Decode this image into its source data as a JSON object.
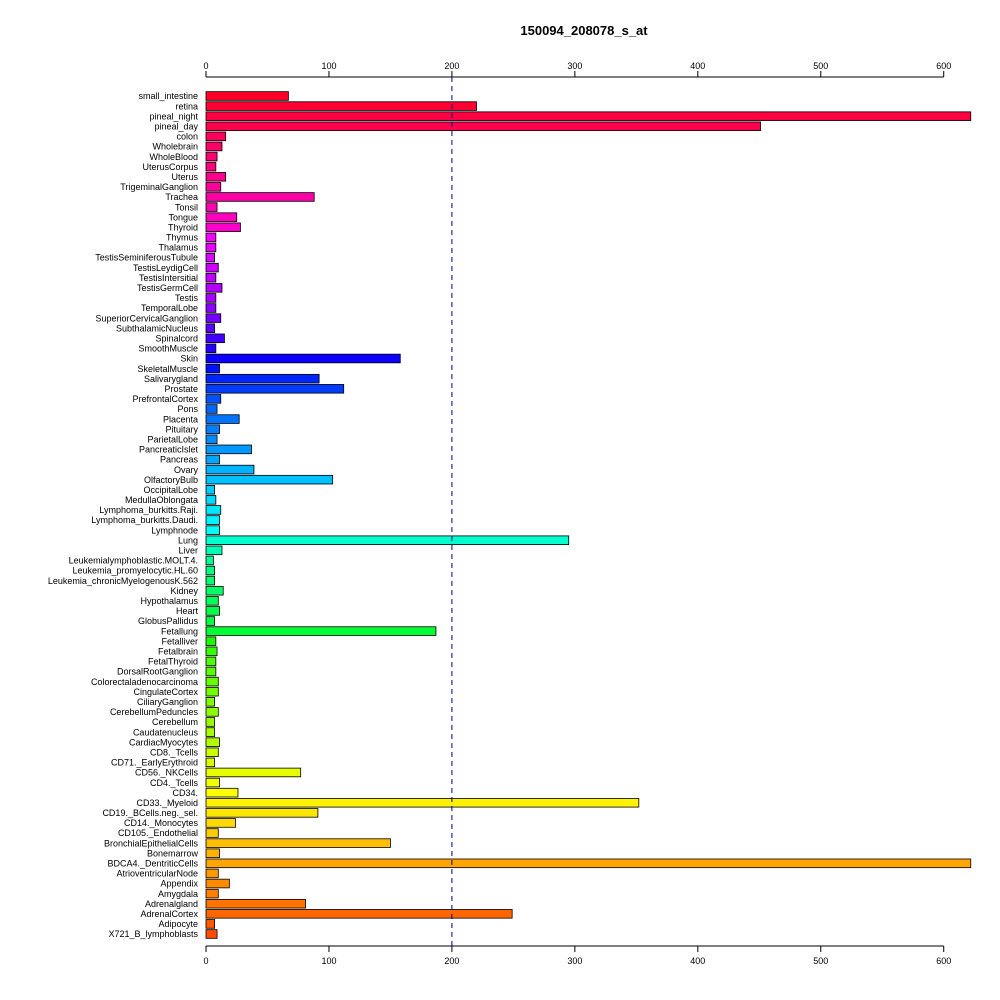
{
  "chart_data": {
    "type": "bar",
    "orientation": "horizontal",
    "title": "150094_208078_s_at",
    "xlim": [
      0,
      623
    ],
    "x_ticks": [
      0,
      100,
      200,
      300,
      400,
      500,
      600
    ],
    "x_tick_labels": [
      "0",
      "100",
      "200",
      "300",
      "400",
      "500",
      "600"
    ],
    "axis_position": "top and bottom",
    "reference_line": 200,
    "reference_line_color": "#00008b",
    "categories": [
      "small_intestine",
      "retina",
      "pineal_night",
      "pineal_day",
      "colon",
      "Wholebrain",
      "WholeBlood",
      "UterusCorpus",
      "Uterus",
      "TrigeminalGanglion",
      "Trachea",
      "Tonsil",
      "Tongue",
      "Thyroid",
      "Thymus",
      "Thalamus",
      "TestisSeminiferousTubule",
      "TestisLeydigCell",
      "TestisIntersitial",
      "TestisGermCell",
      "Testis",
      "TemporalLobe",
      "SuperiorCervicalGanglion",
      "SubthalamicNucleus",
      "Spinalcord",
      "SmoothMuscle",
      "Skin",
      "SkeletalMuscle",
      "Salivarygland",
      "Prostate",
      "PrefrontalCortex",
      "Pons",
      "Placenta",
      "Pituitary",
      "ParietalLobe",
      "PancreaticIslet",
      "Pancreas",
      "Ovary",
      "OlfactoryBulb",
      "OccipitalLobe",
      "MedullaOblongata",
      "Lymphoma_burkitts.Raji.",
      "Lymphoma_burkitts.Daudi.",
      "Lymphnode",
      "Lung",
      "Liver",
      "Leukemialymphoblastic.MOLT.4.",
      "Leukemia_promyelocytic.HL.60",
      "Leukemia_chronicMyelogenousK.562",
      "Kidney",
      "Hypothalamus",
      "Heart",
      "GlobusPallidus",
      "Fetallung",
      "Fetalliver",
      "Fetalbrain",
      "FetalThyroid",
      "DorsalRootGanglion",
      "Colorectaladenocarcinoma",
      "CingulateCortex",
      "CiliaryGanglion",
      "CerebellumPeduncles",
      "Cerebellum",
      "Caudatenucleus",
      "CardiacMyocytes",
      "CD8._Tcells",
      "CD71._EarlyErythroid",
      "CD56._NKCells",
      "CD4._Tcells",
      "CD34.",
      "CD33._Myeloid",
      "CD19._BCells.neg._sel.",
      "CD14._Monocytes",
      "CD105._Endothelial",
      "BronchialEpithelialCells",
      "Bonemarrow",
      "BDCA4._DentriticCells",
      "AtrioventricularNode",
      "Appendix",
      "Amygdala",
      "Adrenalgland",
      "AdrenalCortex",
      "Adipocyte",
      "X721_B_lymphoblasts"
    ],
    "values": [
      67,
      220,
      622,
      451,
      16,
      13,
      9,
      8,
      16,
      12,
      88,
      9,
      25,
      28,
      8,
      8,
      7,
      10,
      8,
      13,
      8,
      8,
      12,
      7,
      15,
      8,
      158,
      11,
      92,
      112,
      12,
      9,
      27,
      11,
      9,
      37,
      11,
      39,
      103,
      7,
      8,
      12,
      11,
      11,
      295,
      13,
      6,
      7,
      7,
      14,
      10,
      11,
      7,
      187,
      8,
      9,
      8,
      8,
      10,
      10,
      7,
      10,
      7,
      7,
      11,
      10,
      7,
      77,
      11,
      26,
      352,
      91,
      24,
      10,
      150,
      11,
      622,
      10,
      19,
      10,
      81,
      249,
      7,
      9
    ],
    "colors": [
      "#ff0026",
      "#ff0033",
      "#ff0040",
      "#ff004d",
      "#ff005a",
      "#ff0066",
      "#ff0073",
      "#ff0080",
      "#ff008c",
      "#ff0099",
      "#ff00a6",
      "#ff00b3",
      "#ff00c0",
      "#ff00cc",
      "#f200ff",
      "#e600ff",
      "#d900ff",
      "#cc00ff",
      "#bf00ff",
      "#b200ff",
      "#a600ff",
      "#8c00ff",
      "#7300ff",
      "#5900ff",
      "#4000ff",
      "#2600ff",
      "#0d00ff",
      "#0011ff",
      "#0026ff",
      "#003cff",
      "#0052ff",
      "#0066ff",
      "#0073ff",
      "#0080ff",
      "#008cff",
      "#0099ff",
      "#00a6ff",
      "#00b3ff",
      "#00c0ff",
      "#00ccff",
      "#00d9ff",
      "#00e6ff",
      "#00f2ff",
      "#00fff2",
      "#00ffcc",
      "#00ffb3",
      "#00ff99",
      "#00ff80",
      "#00ff73",
      "#00ff66",
      "#00ff59",
      "#00ff4d",
      "#00ff40",
      "#00ff33",
      "#19ff00",
      "#33ff00",
      "#4dff00",
      "#59ff00",
      "#66ff00",
      "#73ff00",
      "#80ff00",
      "#8cff00",
      "#99ff00",
      "#a6ff00",
      "#b2ff00",
      "#ccff00",
      "#d9ff00",
      "#e6ff00",
      "#f2ff00",
      "#ffff00",
      "#fff200",
      "#ffe600",
      "#ffd900",
      "#ffcc00",
      "#ffbf00",
      "#ffb300",
      "#ffa600",
      "#ff9900",
      "#ff8c00",
      "#ff8000",
      "#ff7300",
      "#ff6600",
      "#ff5900",
      "#ff4d00"
    ],
    "grid": false,
    "legend": "none"
  }
}
